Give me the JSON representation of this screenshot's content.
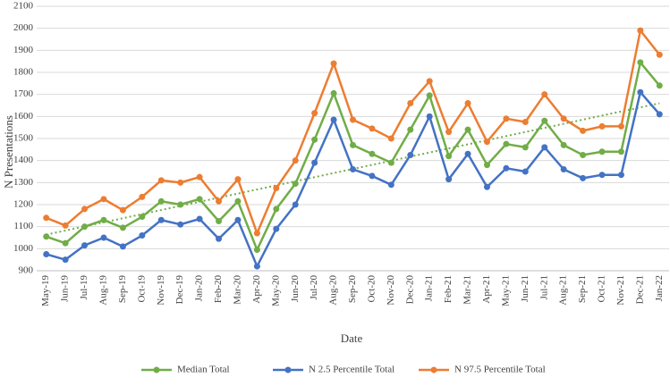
{
  "chart_data": {
    "type": "line",
    "x_label": "Date",
    "y_label": "N Presentations",
    "categories": [
      "May-19",
      "Jun-19",
      "Jul-19",
      "Aug-19",
      "Sep-19",
      "Oct-19",
      "Nov-19",
      "Dec-19",
      "Jan-20",
      "Feb-20",
      "Mar-20",
      "Apr-20",
      "May-20",
      "Jun-20",
      "Jul-20",
      "Aug-20",
      "Sep-20",
      "Oct-20",
      "Nov-20",
      "Dec-20",
      "Jan-21",
      "Feb-21",
      "Mar-21",
      "Apr-21",
      "May-21",
      "Jun-21",
      "Jul-21",
      "Aug-21",
      "Sep-21",
      "Oct-21",
      "Nov-21",
      "Dec-21",
      "Jan-22"
    ],
    "series": [
      {
        "name": "Median Total",
        "color": "#70ad47",
        "values": [
          1055,
          1025,
          1100,
          1130,
          1095,
          1145,
          1215,
          1200,
          1225,
          1125,
          1215,
          995,
          1180,
          1295,
          1495,
          1705,
          1470,
          1430,
          1390,
          1540,
          1695,
          1420,
          1540,
          1380,
          1475,
          1460,
          1580,
          1470,
          1425,
          1440,
          1440,
          1845,
          1740
        ]
      },
      {
        "name": "N 2.5 Percentile Total",
        "color": "#4472c4",
        "values": [
          975,
          950,
          1015,
          1050,
          1010,
          1060,
          1130,
          1110,
          1135,
          1045,
          1130,
          920,
          1090,
          1200,
          1390,
          1585,
          1360,
          1330,
          1290,
          1425,
          1600,
          1315,
          1430,
          1280,
          1365,
          1350,
          1460,
          1360,
          1320,
          1335,
          1335,
          1710,
          1610
        ]
      },
      {
        "name": "N 97.5 Percentile Total",
        "color": "#ed7d31",
        "values": [
          1140,
          1105,
          1180,
          1225,
          1175,
          1235,
          1310,
          1300,
          1325,
          1215,
          1315,
          1070,
          1275,
          1400,
          1615,
          1840,
          1585,
          1545,
          1500,
          1660,
          1760,
          1530,
          1660,
          1485,
          1590,
          1575,
          1700,
          1590,
          1535,
          1555,
          1555,
          1990,
          1880
        ]
      }
    ],
    "trendline": {
      "series": 0,
      "color": "#70ad47"
    },
    "ylim": [
      900,
      2100
    ],
    "yticks": [
      900,
      1000,
      1100,
      1200,
      1300,
      1400,
      1500,
      1600,
      1700,
      1800,
      1900,
      2000,
      2100
    ],
    "grid": true,
    "legend": "bottom"
  }
}
